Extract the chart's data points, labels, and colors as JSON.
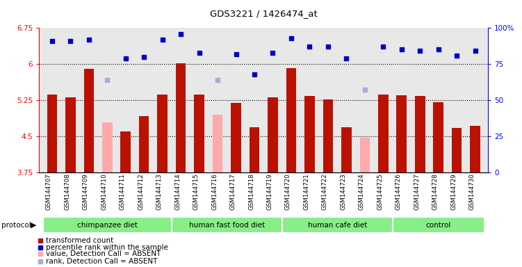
{
  "title": "GDS3221 / 1426474_at",
  "samples": [
    "GSM144707",
    "GSM144708",
    "GSM144709",
    "GSM144710",
    "GSM144711",
    "GSM144712",
    "GSM144713",
    "GSM144714",
    "GSM144715",
    "GSM144716",
    "GSM144717",
    "GSM144718",
    "GSM144719",
    "GSM144720",
    "GSM144721",
    "GSM144722",
    "GSM144723",
    "GSM144724",
    "GSM144725",
    "GSM144726",
    "GSM144727",
    "GSM144728",
    "GSM144729",
    "GSM144730"
  ],
  "bar_values": [
    5.36,
    5.31,
    5.9,
    4.78,
    4.6,
    4.92,
    5.36,
    6.02,
    5.37,
    4.95,
    5.19,
    4.68,
    5.31,
    5.92,
    5.33,
    5.26,
    4.68,
    4.47,
    5.37,
    5.35,
    5.33,
    5.2,
    4.67,
    4.72
  ],
  "bar_absent": [
    false,
    false,
    false,
    true,
    false,
    false,
    false,
    false,
    false,
    true,
    false,
    false,
    false,
    false,
    false,
    false,
    false,
    true,
    false,
    false,
    false,
    false,
    false,
    false
  ],
  "rank_values": [
    91,
    91,
    92,
    64,
    79,
    80,
    92,
    96,
    83,
    64,
    82,
    68,
    83,
    93,
    87,
    87,
    79,
    57,
    87,
    85,
    84,
    85,
    81,
    84
  ],
  "rank_absent": [
    false,
    false,
    false,
    true,
    false,
    false,
    false,
    false,
    false,
    true,
    false,
    false,
    false,
    false,
    false,
    false,
    false,
    true,
    false,
    false,
    false,
    false,
    false,
    false
  ],
  "groups": [
    {
      "label": "chimpanzee diet",
      "start": 0,
      "end": 7
    },
    {
      "label": "human fast food diet",
      "start": 7,
      "end": 13
    },
    {
      "label": "human cafe diet",
      "start": 13,
      "end": 19
    },
    {
      "label": "control",
      "start": 19,
      "end": 24
    }
  ],
  "ylim": [
    3.75,
    6.75
  ],
  "yticks": [
    3.75,
    4.5,
    5.25,
    6.0,
    6.75
  ],
  "ytick_labels": [
    "3.75",
    "4.5",
    "5.25",
    "6",
    "6.75"
  ],
  "y2lim": [
    0,
    100
  ],
  "y2ticks": [
    0,
    25,
    50,
    75,
    100
  ],
  "y2tick_labels": [
    "0",
    "25",
    "50",
    "75",
    "100%"
  ],
  "bar_color_present": "#bb1100",
  "bar_color_absent": "#ffaaaa",
  "rank_color_present": "#0000cc",
  "rank_color_absent": "#aaaadd",
  "plot_bg": "#e8e8e8",
  "gridline_y": [
    6.0,
    5.25,
    4.5
  ],
  "bar_width": 0.55,
  "group_color": "#88ee88"
}
